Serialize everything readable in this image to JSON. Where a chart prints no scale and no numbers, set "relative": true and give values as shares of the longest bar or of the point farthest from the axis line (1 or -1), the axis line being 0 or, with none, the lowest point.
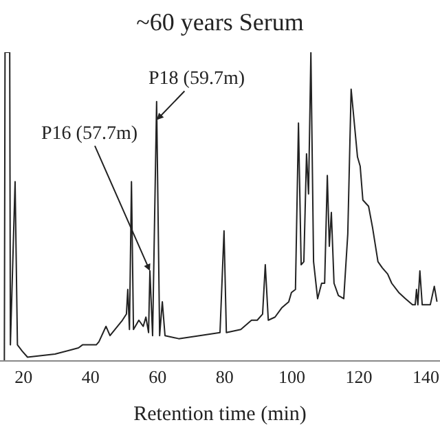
{
  "chart_data": {
    "type": "line",
    "relative": true,
    "title": "~60 years Serum",
    "xlabel": "Retention time (min)",
    "xlim": [
      13,
      144.2
    ],
    "xticks": [
      20,
      40,
      60,
      80,
      100,
      120,
      140
    ],
    "tick_labels": "x",
    "grid": false,
    "legend": false,
    "marker": "none",
    "line_style": "solid",
    "series": [
      {
        "color": "#222222",
        "x": [
          14.3,
          14.5,
          15.9,
          16.1,
          17.5,
          18.2,
          19.6,
          21.2,
          29.4,
          36.4,
          37.6,
          41.7,
          42.5,
          44.6,
          45.8,
          49.5,
          50.7,
          51.1,
          51.6,
          52.2,
          52.8,
          54.4,
          55.7,
          56.5,
          57.3,
          57.7,
          58.5,
          59.7,
          60.6,
          61.4,
          62.2,
          66.3,
          72.5,
          78.6,
          79.8,
          80.5,
          84.8,
          88.0,
          89.7,
          91.3,
          92.1,
          93.0,
          95.0,
          97.0,
          99.1,
          99.9,
          101.1,
          102.0,
          102.8,
          103.6,
          104.4,
          105.0,
          105.7,
          106.5,
          107.7,
          108.9,
          109.8,
          110.6,
          111.2,
          111.8,
          112.6,
          113.9,
          115.5,
          116.7,
          117.7,
          119.6,
          120.4,
          121.2,
          122.9,
          124.1,
          125.7,
          127.0,
          128.6,
          129.8,
          131.9,
          133.9,
          136.0,
          136.8,
          137.2,
          137.6,
          138.2,
          138.9,
          140.1,
          141.3,
          142.5,
          143.3
        ],
        "values": [
          0,
          1,
          1,
          0.05,
          0.58,
          0.05,
          0.03,
          0.01,
          0.02,
          0.04,
          0.05,
          0.05,
          0.06,
          0.11,
          0.08,
          0.13,
          0.15,
          0.23,
          0.1,
          0.58,
          0.1,
          0.13,
          0.11,
          0.14,
          0.09,
          0.29,
          0.08,
          0.84,
          0.08,
          0.19,
          0.08,
          0.07,
          0.08,
          0.09,
          0.42,
          0.09,
          0.1,
          0.13,
          0.13,
          0.15,
          0.31,
          0.13,
          0.14,
          0.17,
          0.19,
          0.22,
          0.23,
          0.77,
          0.31,
          0.32,
          0.67,
          0.54,
          1,
          0.32,
          0.2,
          0.25,
          0.25,
          0.6,
          0.37,
          0.48,
          0.25,
          0.21,
          0.2,
          0.41,
          0.88,
          0.66,
          0.63,
          0.52,
          0.5,
          0.43,
          0.32,
          0.3,
          0.28,
          0.25,
          0.22,
          0.2,
          0.18,
          0.18,
          0.23,
          0.18,
          0.29,
          0.18,
          0.18,
          0.18,
          0.24,
          0.19
        ]
      }
    ],
    "annotations": [
      {
        "text": "P16 (57.7m)",
        "x": 57.7,
        "y": 0.29
      },
      {
        "text": "P18 (59.7m)",
        "x": 59.7,
        "y": 0.78
      }
    ]
  }
}
